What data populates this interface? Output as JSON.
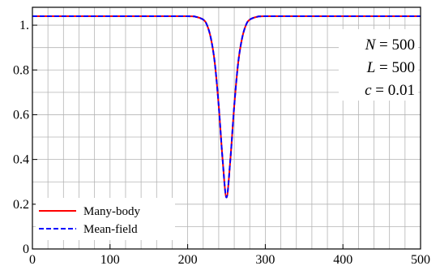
{
  "chart_data": {
    "type": "line",
    "title": "",
    "xlabel": "",
    "ylabel": "",
    "xlim": [
      0,
      500
    ],
    "ylim": [
      0,
      1.08
    ],
    "grid": true,
    "xticks": [
      0,
      100,
      200,
      300,
      400,
      500
    ],
    "xtick_labels": [
      "0",
      "100",
      "200",
      "300",
      "400",
      "500"
    ],
    "yticks": [
      0,
      0.2,
      0.4,
      0.6,
      0.8,
      1
    ],
    "ytick_labels": [
      "0",
      "0.2",
      "0.4",
      "0.6",
      "0.8",
      "1."
    ],
    "legend_position": "bottom-left",
    "annotations": [
      {
        "var": "N",
        "rel": " = ",
        "val": "500"
      },
      {
        "var": "L",
        "rel": " = ",
        "val": "500"
      },
      {
        "var": "c",
        "rel": " = ",
        "val": "0.01"
      }
    ],
    "x": [
      0,
      100,
      150,
      200,
      210,
      220,
      225,
      230,
      235,
      240,
      245,
      250,
      255,
      260,
      265,
      270,
      275,
      280,
      290,
      300,
      350,
      400,
      450,
      500
    ],
    "series": [
      {
        "name": "Many-body",
        "color": "#ff0000",
        "style": "solid",
        "values": [
          1.04,
          1.04,
          1.04,
          1.04,
          1.038,
          1.025,
          1.0,
          0.94,
          0.83,
          0.64,
          0.4,
          0.23,
          0.4,
          0.64,
          0.83,
          0.94,
          1.0,
          1.025,
          1.038,
          1.04,
          1.04,
          1.04,
          1.04,
          1.04
        ]
      },
      {
        "name": "Mean-field",
        "color": "#0000ff",
        "style": "dashed",
        "values": [
          1.04,
          1.04,
          1.04,
          1.04,
          1.038,
          1.025,
          1.0,
          0.94,
          0.83,
          0.64,
          0.4,
          0.23,
          0.4,
          0.64,
          0.83,
          0.94,
          1.0,
          1.025,
          1.038,
          1.04,
          1.04,
          1.04,
          1.04,
          1.04
        ]
      }
    ]
  }
}
